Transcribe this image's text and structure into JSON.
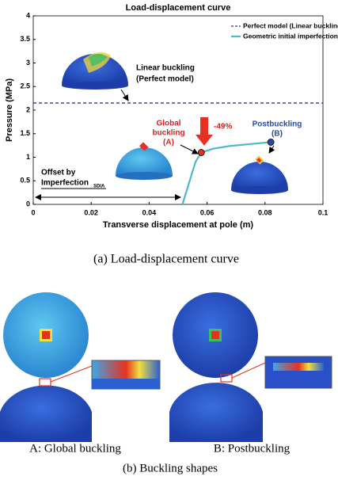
{
  "chart_data": {
    "type": "line",
    "title": "Load-displacement curve",
    "xlabel": "Transverse displacement at pole (m)",
    "ylabel": "Pressure (MPa)",
    "xlim": [
      0,
      0.1
    ],
    "xticks": [
      0,
      0.02,
      0.04,
      0.06,
      0.08,
      0.1
    ],
    "ylim": [
      0,
      4
    ],
    "yticks": [
      0,
      0.5,
      1,
      1.5,
      2,
      2.5,
      3,
      3.5,
      4
    ],
    "legend": "upper right",
    "series": [
      {
        "name": "Perfect model (Linear buckling pressure)",
        "color": "#2b3a8c",
        "dashed": true,
        "x": [
          0,
          0.1
        ],
        "values": [
          2.15,
          2.15
        ]
      },
      {
        "name": "Geometric initial imperfection only",
        "color": "#4fb8c8",
        "dashed": false,
        "x": [
          0.0515,
          0.053,
          0.0545,
          0.056,
          0.058,
          0.062,
          0.068,
          0.075,
          0.082
        ],
        "values": [
          0,
          0.3,
          0.6,
          0.9,
          1.1,
          1.18,
          1.24,
          1.28,
          1.32
        ]
      }
    ],
    "annotations": {
      "linear_buckling": [
        "Linear buckling",
        "(Perfect model)"
      ],
      "global_buckling": [
        "Global",
        "buckling",
        "(A)"
      ],
      "drop": "-49%",
      "postbuckling": [
        "Postbuckling",
        "(B)"
      ],
      "offset": [
        "Offset by",
        "Imperfection",
        "SDIA"
      ]
    }
  },
  "captions": {
    "panel_a": "(a)  Load-displacement  curve",
    "shape_a": "A:  Global  buckling",
    "shape_b": "B:  Postbuckling",
    "panel_b": "(b)  Buckling  shapes"
  }
}
